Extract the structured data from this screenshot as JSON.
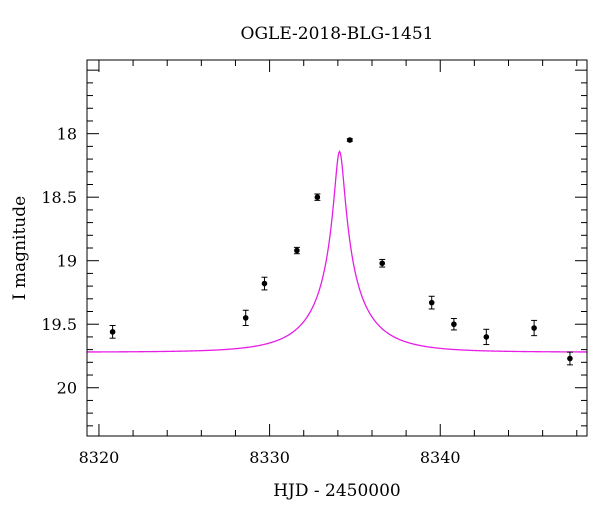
{
  "chart_data": {
    "type": "scatter",
    "title": "OGLE-2018-BLG-1451",
    "xlabel": "HJD - 2450000",
    "ylabel": "I magnitude",
    "xlim": [
      8319.3,
      8348.6
    ],
    "ylim": [
      20.38,
      17.42
    ],
    "y_inverted": true,
    "x_ticks": [
      8320,
      8330,
      8340
    ],
    "y_ticks": [
      18,
      18.5,
      19,
      19.5,
      20
    ],
    "x_tick_labels": [
      "8320",
      "8330",
      "8340"
    ],
    "y_tick_labels": [
      "18",
      "18.5",
      "19",
      "19.5",
      "20"
    ],
    "grid": false,
    "colors": {
      "model": "#e61ee6",
      "points": "#000000"
    },
    "series": [
      {
        "type": "scatter",
        "points": [
          {
            "x": 8320.8,
            "y": 19.56,
            "err": 0.05
          },
          {
            "x": 8328.6,
            "y": 19.45,
            "err": 0.06
          },
          {
            "x": 8329.7,
            "y": 19.18,
            "err": 0.05
          },
          {
            "x": 8331.6,
            "y": 18.92,
            "err": 0.025
          },
          {
            "x": 8332.8,
            "y": 18.5,
            "err": 0.025
          },
          {
            "x": 8334.7,
            "y": 18.05,
            "err": 0.01
          },
          {
            "x": 8336.6,
            "y": 19.02,
            "err": 0.03
          },
          {
            "x": 8339.5,
            "y": 19.33,
            "err": 0.05
          },
          {
            "x": 8340.8,
            "y": 19.5,
            "err": 0.045
          },
          {
            "x": 8342.7,
            "y": 19.6,
            "err": 0.06
          },
          {
            "x": 8345.5,
            "y": 19.53,
            "err": 0.06
          },
          {
            "x": 8347.6,
            "y": 19.77,
            "err": 0.05
          }
        ]
      },
      {
        "type": "line",
        "model": {
          "t0": 8334.1,
          "tE": 3.5,
          "u0": 0.08,
          "baseline_mag": 19.72,
          "blend_fraction": 0.285
        },
        "x_range": [
          8319.3,
          8348.6
        ]
      }
    ]
  }
}
